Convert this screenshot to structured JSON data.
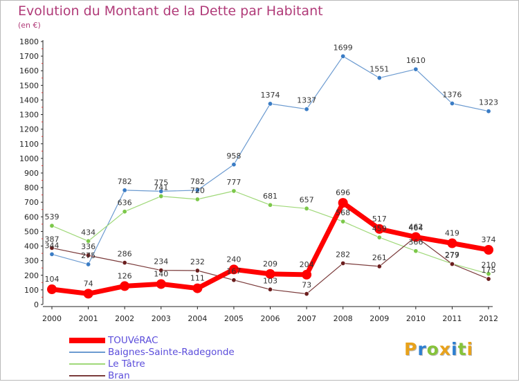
{
  "title": "Evolution du Montant de la Dette par Habitant",
  "subtitle": "(en €)",
  "logo_letters": [
    "P",
    "r",
    "o",
    "x",
    "i",
    "t",
    "i"
  ],
  "logo_colors": [
    "#e8a21b",
    "#2d7fd1",
    "#86c33a",
    "#e8a21b",
    "#2d7fd1",
    "#86c33a",
    "#e8a21b"
  ],
  "chart_data": {
    "type": "line",
    "x": [
      "2000",
      "2001",
      "2002",
      "2003",
      "2004",
      "2005",
      "2006",
      "2007",
      "2008",
      "2009",
      "2010",
      "2011",
      "2012"
    ],
    "ylim": [
      0,
      1800
    ],
    "yticks": [
      "0",
      "100",
      "200",
      "300",
      "400",
      "500",
      "600",
      "700",
      "800",
      "900",
      "1000",
      "1100",
      "1200",
      "1300",
      "1400",
      "1500",
      "1600",
      "1700",
      "1800"
    ],
    "grid": false,
    "legend": "bottom-left",
    "series": [
      {
        "name": "Baignes-Sainte-Radegonde",
        "color": "#6b9ad0",
        "marker": "#3a7cc5",
        "values": [
          344,
          275,
          782,
          775,
          782,
          958,
          1374,
          1337,
          1699,
          1551,
          1610,
          1376,
          1323
        ],
        "labels": [
          "344",
          "275",
          "782",
          "775",
          "782",
          "958",
          "1374",
          "1337",
          "1699",
          "1551",
          "1610",
          "1376",
          "1323"
        ]
      },
      {
        "name": "Le Tâtre",
        "color": "#9fd878",
        "marker": "#7cc84a",
        "values": [
          539,
          434,
          636,
          741,
          720,
          777,
          681,
          657,
          568,
          459,
          366,
          279,
          210
        ],
        "labels": [
          "539",
          "434",
          "636",
          "741",
          "720",
          "777",
          "681",
          "657",
          "568",
          "459",
          "366",
          "279",
          "210"
        ]
      },
      {
        "name": "Bran",
        "color": "#7a3a3a",
        "marker": "#6b1e1e",
        "values": [
          387,
          336,
          286,
          234,
          232,
          167,
          103,
          73,
          282,
          261,
          464,
          277,
          175
        ],
        "labels": [
          "387",
          "336",
          "286",
          "234",
          "232",
          "167",
          "103",
          "73",
          "282",
          "261",
          "464",
          "277",
          "175"
        ]
      },
      {
        "name": "TOUVéRAC",
        "color": "#ff0000",
        "marker": "#ff0000",
        "values": [
          104,
          74,
          126,
          140,
          111,
          240,
          209,
          204,
          696,
          517,
          462,
          419,
          374
        ],
        "labels": [
          "104",
          "74",
          "126",
          "140",
          "111",
          "240",
          "209",
          "204",
          "696",
          "517",
          "462",
          "419",
          "374"
        ]
      }
    ],
    "legend_order": [
      "TOUVéRAC",
      "Baignes-Sainte-Radegonde",
      "Le Tâtre",
      "Bran"
    ]
  }
}
